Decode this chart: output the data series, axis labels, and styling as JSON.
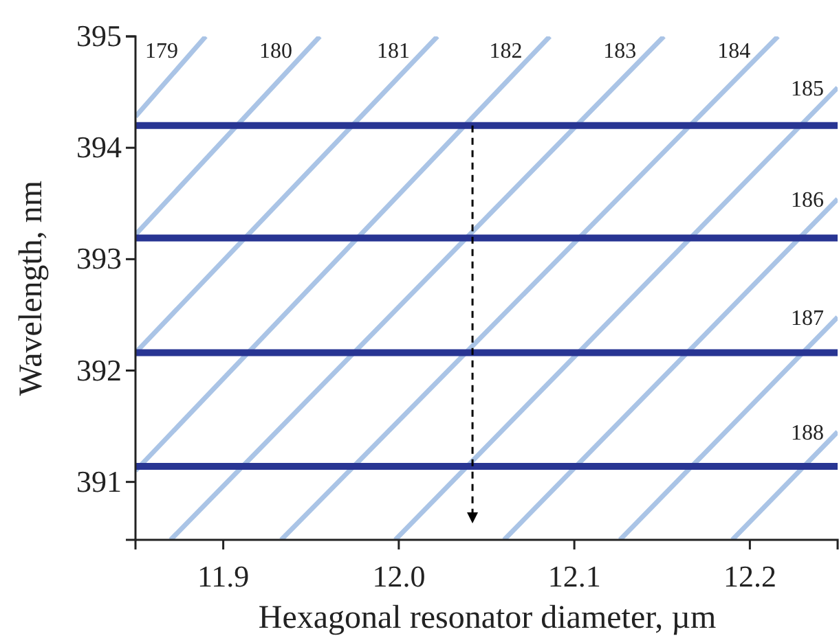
{
  "chart_data": {
    "type": "line",
    "xlabel": "Hexagonal resonator diameter, µm",
    "ylabel": "Wavelength, nm",
    "xlim": [
      11.85,
      12.25
    ],
    "ylim": [
      390.48,
      395
    ],
    "xticks": [
      11.9,
      {
        "value": 12.0,
        "label": "12.0"
      },
      12.1,
      12.2
    ],
    "yticks": [
      391,
      392,
      393,
      394,
      395
    ],
    "grid": false,
    "line_style": "solid",
    "marker": "none",
    "series": [
      {
        "name": "179",
        "color": "#aac4e6",
        "x": [
          11.85,
          11.89
        ],
        "values": [
          394.28,
          395
        ]
      },
      {
        "name": "180",
        "color": "#aac4e6",
        "x": [
          11.85,
          11.955
        ],
        "values": [
          393.22,
          395
        ]
      },
      {
        "name": "181",
        "color": "#aac4e6",
        "x": [
          11.85,
          12.022
        ],
        "values": [
          392.16,
          395
        ]
      },
      {
        "name": "182",
        "color": "#aac4e6",
        "x": [
          11.85,
          12.086
        ],
        "values": [
          391.1,
          395
        ]
      },
      {
        "name": "183",
        "color": "#aac4e6",
        "x": [
          11.87,
          12.151
        ],
        "values": [
          390.48,
          395
        ]
      },
      {
        "name": "184",
        "color": "#aac4e6",
        "x": [
          11.933,
          12.216
        ],
        "values": [
          390.48,
          395
        ]
      },
      {
        "name": "185",
        "color": "#aac4e6",
        "x": [
          11.998,
          12.25
        ],
        "values": [
          390.48,
          394.54
        ]
      },
      {
        "name": "186",
        "color": "#aac4e6",
        "x": [
          12.06,
          12.25
        ],
        "values": [
          390.48,
          393.54
        ]
      },
      {
        "name": "187",
        "color": "#aac4e6",
        "x": [
          12.126,
          12.25
        ],
        "values": [
          390.48,
          392.48
        ]
      },
      {
        "name": "188",
        "color": "#aac4e6",
        "x": [
          12.19,
          12.25
        ],
        "values": [
          390.48,
          391.45
        ]
      },
      {
        "color": "#283593",
        "x": [
          11.85,
          12.25
        ],
        "values": [
          394.2,
          394.2
        ]
      },
      {
        "color": "#283593",
        "x": [
          11.85,
          12.25
        ],
        "values": [
          393.19,
          393.19
        ]
      },
      {
        "color": "#283593",
        "x": [
          11.85,
          12.25
        ],
        "values": [
          392.16,
          392.16
        ]
      },
      {
        "color": "#283593",
        "x": [
          11.85,
          12.25
        ],
        "values": [
          391.14,
          391.14
        ]
      }
    ],
    "ref_lines": [
      {
        "axis": "x",
        "value": 12.042,
        "color": "#000000",
        "line_style": "dashed"
      }
    ]
  }
}
